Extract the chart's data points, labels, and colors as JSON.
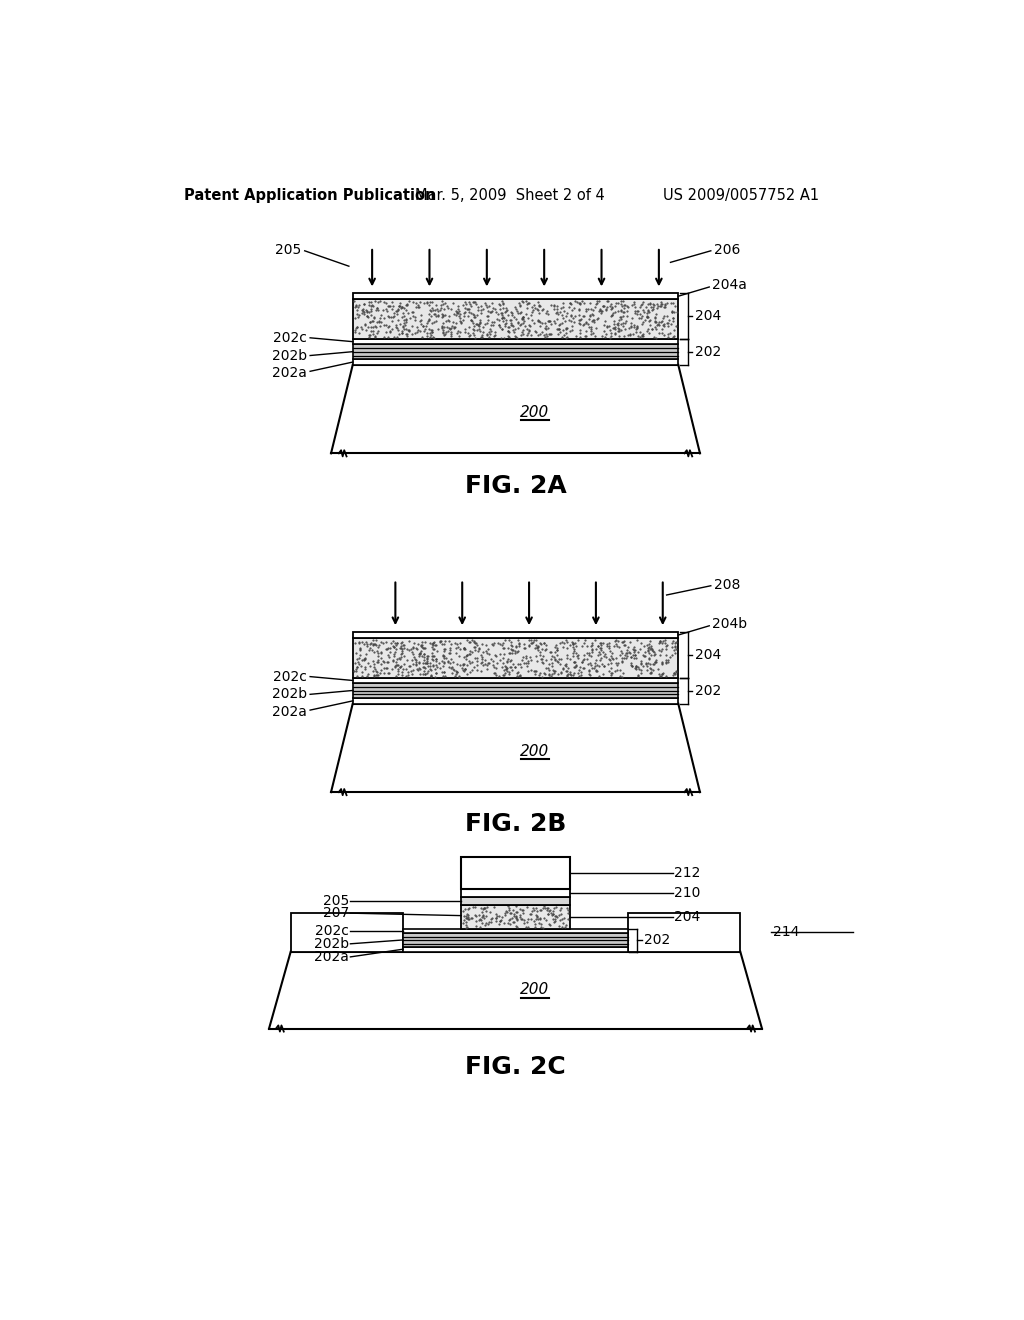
{
  "header_left": "Patent Application Publication",
  "header_mid": "Mar. 5, 2009  Sheet 2 of 4",
  "header_right": "US 2009/0057752 A1",
  "background_color": "#ffffff",
  "line_color": "#000000"
}
